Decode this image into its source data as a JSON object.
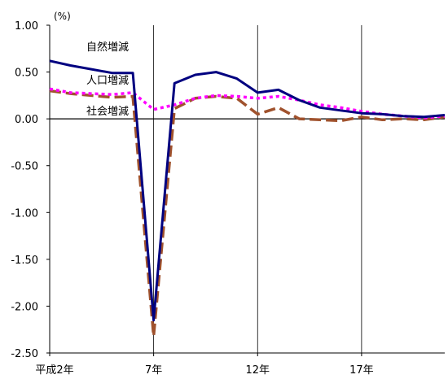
{
  "chart_data": {
    "type": "line",
    "title": "",
    "xlabel": "",
    "ylabel": "",
    "unit": "(%)",
    "ylim": [
      -2.5,
      1.0
    ],
    "yticks": [
      "1.00",
      "0.50",
      "0.00",
      "-0.50",
      "-1.00",
      "-1.50",
      "-2.00",
      "-2.50"
    ],
    "x": [
      2,
      3,
      4,
      5,
      6,
      7,
      8,
      9,
      10,
      11,
      12,
      13,
      14,
      15,
      16,
      17,
      18,
      19,
      20,
      21
    ],
    "xlim": [
      2,
      21
    ],
    "xticks": [
      {
        "value": 2,
        "label": "平成2年"
      },
      {
        "value": 7,
        "label": "7年"
      },
      {
        "value": 12,
        "label": "12年"
      },
      {
        "value": 17,
        "label": "17年"
      }
    ],
    "grid_x": [
      7,
      12,
      17
    ],
    "zero_line": true,
    "series": [
      {
        "name": "自然増減",
        "color": "#000080",
        "dash": "solid",
        "values": [
          0.62,
          0.57,
          0.53,
          0.49,
          0.49,
          -2.15,
          0.38,
          0.47,
          0.5,
          0.43,
          0.28,
          0.31,
          0.2,
          0.12,
          0.09,
          0.06,
          0.05,
          0.03,
          0.02,
          0.04
        ]
      },
      {
        "name": "人口増減",
        "color": "#FF00FF",
        "dash": "dotted",
        "values": [
          0.32,
          0.28,
          0.27,
          0.26,
          0.28,
          0.1,
          0.15,
          0.22,
          0.25,
          0.24,
          0.22,
          0.24,
          0.2,
          0.15,
          0.12,
          0.08,
          0.05,
          0.03,
          0.01,
          0.03
        ]
      },
      {
        "name": "社会増減",
        "color": "#A0522D",
        "dash": "dashed",
        "values": [
          0.3,
          0.27,
          0.25,
          0.23,
          0.24,
          -2.32,
          0.11,
          0.22,
          0.24,
          0.22,
          0.05,
          0.12,
          0.0,
          -0.01,
          -0.02,
          0.02,
          -0.01,
          0.0,
          -0.01,
          0.02
        ]
      }
    ],
    "series_label_positions": "inline-left"
  }
}
